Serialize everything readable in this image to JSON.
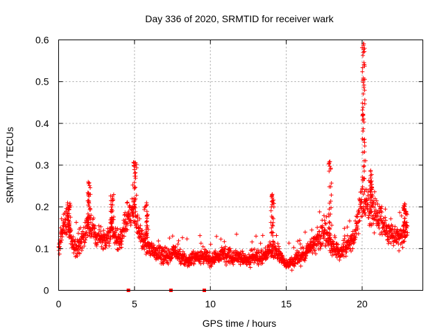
{
  "chart_data": {
    "type": "scatter",
    "title": "Day 336 of 2020, SRMTID for receiver wark",
    "xlabel": "GPS time / hours",
    "ylabel": "SRMTID / TECUs",
    "xlim": [
      0,
      24
    ],
    "ylim": [
      0,
      0.6
    ],
    "x_ticks": [
      0,
      5,
      10,
      15,
      20
    ],
    "y_ticks": [
      0,
      0.1,
      0.2,
      0.3,
      0.4,
      0.5,
      0.6
    ],
    "x_tick_labels": [
      "0",
      "5",
      "10",
      "15",
      "20"
    ],
    "y_tick_labels": [
      "0",
      "0.1",
      "0.2",
      "0.3",
      "0.4",
      "0.5",
      "0.6"
    ],
    "grid": true,
    "marker": "+",
    "series_color": "#ff0000",
    "trend_hours": [
      0.0,
      0.5,
      1.0,
      1.5,
      2.0,
      2.5,
      3.0,
      3.5,
      4.0,
      4.5,
      5.0,
      5.5,
      6.0,
      6.5,
      7.0,
      7.5,
      8.0,
      8.5,
      9.0,
      9.5,
      10.0,
      10.5,
      11.0,
      11.5,
      12.0,
      12.5,
      13.0,
      13.5,
      14.0,
      14.5,
      15.0,
      15.5,
      16.0,
      16.5,
      17.0,
      17.5,
      18.0,
      18.5,
      19.0,
      19.5,
      20.0,
      20.5,
      21.0,
      21.5,
      22.0,
      22.5,
      23.0
    ],
    "trend_tecus": [
      0.1,
      0.17,
      0.1,
      0.12,
      0.16,
      0.13,
      0.12,
      0.14,
      0.11,
      0.17,
      0.19,
      0.12,
      0.1,
      0.09,
      0.08,
      0.09,
      0.08,
      0.07,
      0.08,
      0.08,
      0.07,
      0.08,
      0.09,
      0.08,
      0.08,
      0.07,
      0.08,
      0.08,
      0.1,
      0.09,
      0.06,
      0.07,
      0.08,
      0.1,
      0.12,
      0.14,
      0.11,
      0.09,
      0.11,
      0.13,
      0.22,
      0.2,
      0.18,
      0.15,
      0.13,
      0.13,
      0.14
    ],
    "bursts": [
      {
        "hour": 0.7,
        "peak": 0.21
      },
      {
        "hour": 2.0,
        "peak": 0.26
      },
      {
        "hour": 3.5,
        "peak": 0.23
      },
      {
        "hour": 5.0,
        "peak": 0.31
      },
      {
        "hour": 5.8,
        "peak": 0.22
      },
      {
        "hour": 14.1,
        "peak": 0.23
      },
      {
        "hour": 17.9,
        "peak": 0.31
      },
      {
        "hour": 20.1,
        "peak": 0.6
      },
      {
        "hour": 20.6,
        "peak": 0.29
      },
      {
        "hour": 22.8,
        "peak": 0.21
      }
    ],
    "zero_markers": [
      4.6,
      7.4,
      9.6
    ]
  }
}
